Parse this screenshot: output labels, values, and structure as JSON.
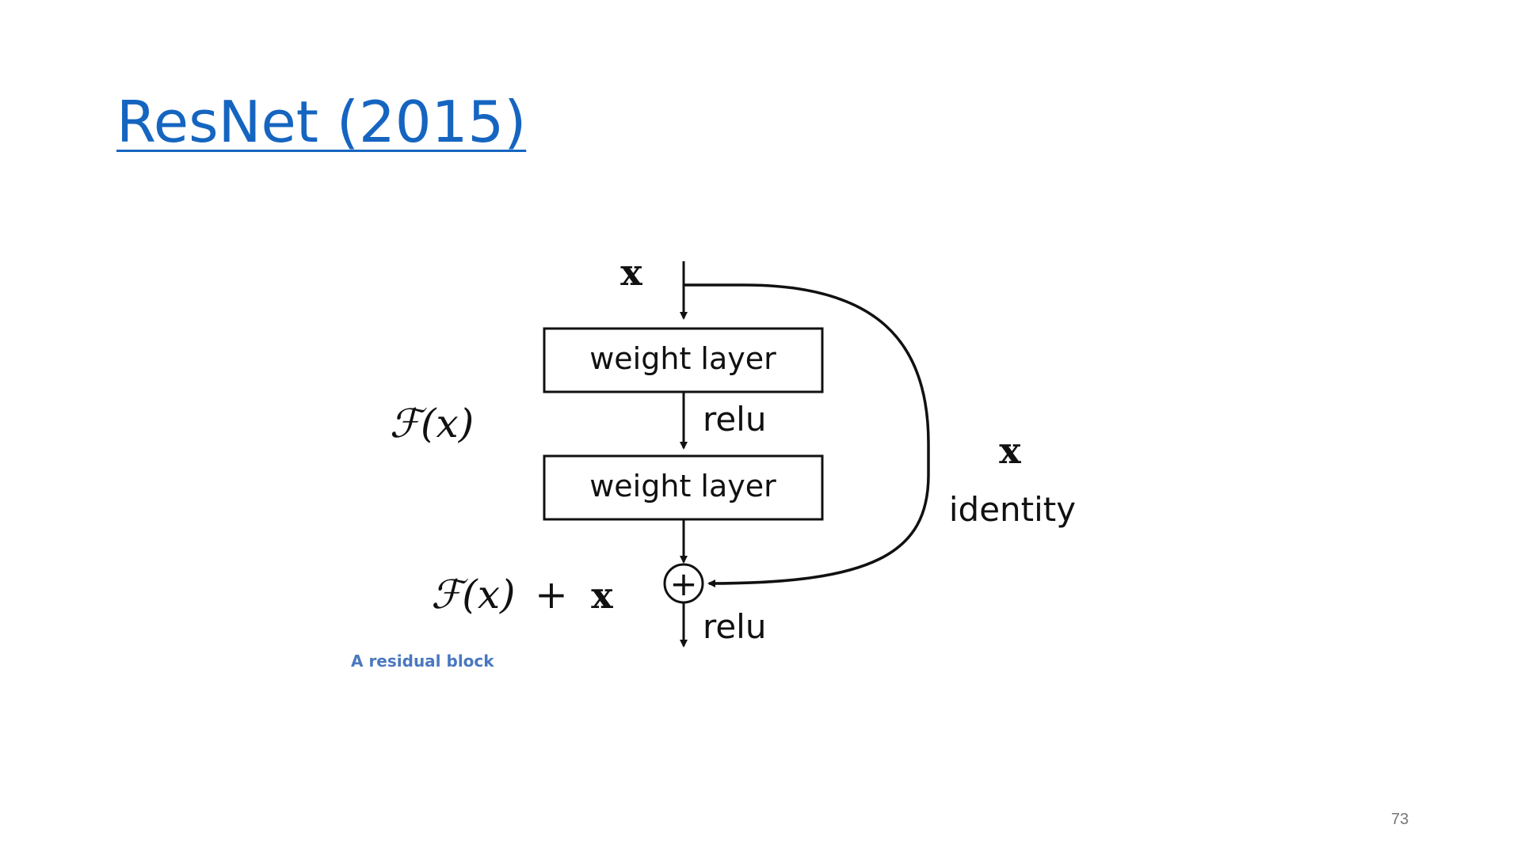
{
  "slide": {
    "title": "ResNet (2015)",
    "caption": "A residual block",
    "page_number": "73"
  },
  "diagram": {
    "input_label": "x",
    "layer1_label": "weight layer",
    "activation1_label": "relu",
    "layer2_label": "weight layer",
    "residual_function_label": "ℱ(x)",
    "sum_label_function": "ℱ(x)",
    "sum_label_plus": "+",
    "sum_label_x": "x",
    "skip_label_x": "x",
    "skip_label": "identity",
    "adder_symbol": "+",
    "activation2_label": "relu"
  },
  "colors": {
    "title": "#1565c0",
    "caption": "#4a78c0",
    "page_number": "#777777",
    "diagram_stroke": "#111111"
  }
}
